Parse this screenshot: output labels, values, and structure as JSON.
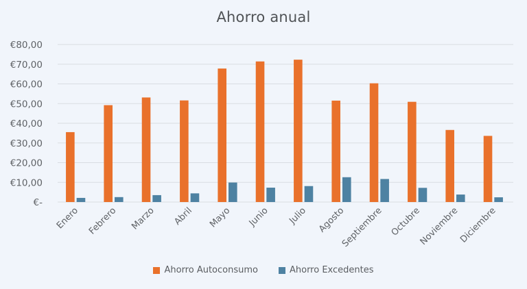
{
  "chart_data": {
    "type": "bar",
    "title": "Ahorro anual",
    "xlabel": "",
    "ylabel": "",
    "categories": [
      "Enero",
      "Febrero",
      "Marzo",
      "Abril",
      "Mayo",
      "Junio",
      "Julio",
      "Agosto",
      "Septiembre",
      "Octubre",
      "Noviembre",
      "Diciembre"
    ],
    "series": [
      {
        "name": "Ahorro Autoconsumo",
        "color": "#e9712b",
        "values": [
          35.5,
          49.2,
          53.1,
          51.6,
          67.8,
          71.4,
          72.3,
          51.5,
          60.3,
          50.9,
          36.6,
          33.6
        ]
      },
      {
        "name": "Ahorro Excedentes",
        "color": "#4e82a2",
        "values": [
          2.1,
          2.5,
          3.5,
          4.4,
          9.9,
          7.3,
          8.1,
          12.6,
          11.7,
          7.2,
          3.8,
          2.4
        ]
      }
    ],
    "ylim": [
      0,
      80
    ],
    "yticks": [
      0,
      10,
      20,
      30,
      40,
      50,
      60,
      70,
      80
    ],
    "ytick_labels": [
      "€-",
      "€10,00",
      "€20,00",
      "€30,00",
      "€40,00",
      "€50,00",
      "€60,00",
      "€70,00",
      "€80,00"
    ],
    "grid": true,
    "legend_position": "bottom",
    "x_label_rotation": -45
  },
  "colors": {
    "background": "#f1f5fb",
    "gridline": "#d9dde2",
    "text": "#5f6266"
  }
}
